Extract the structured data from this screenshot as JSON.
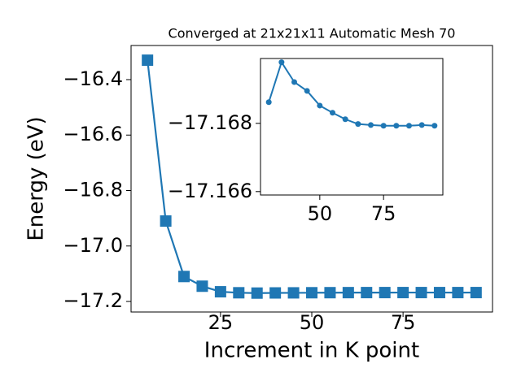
{
  "chart_data": [
    {
      "type": "line",
      "title": "Converged at 21x21x11 Automatic Mesh 70",
      "xlabel": "Increment in K point",
      "ylabel": "Energy (eV)",
      "marker": "square",
      "color": "#1f77b4",
      "x": [
        5,
        10,
        15,
        20,
        25,
        30,
        35,
        40,
        45,
        50,
        55,
        60,
        65,
        70,
        75,
        80,
        85,
        90,
        95
      ],
      "values": [
        -16.33,
        -16.91,
        -17.11,
        -17.145,
        -17.165,
        -17.16862,
        -17.16979,
        -17.16921,
        -17.16895,
        -17.16852,
        -17.16831,
        -17.16812,
        -17.16798,
        -17.16795,
        -17.16793,
        -17.16793,
        -17.16793,
        -17.16795,
        -17.16793
      ],
      "xlim": [
        0.5,
        99.5
      ],
      "ylim": [
        -17.238,
        -16.277
      ],
      "xticks": [
        25,
        50,
        75
      ],
      "yticks": [
        {
          "value": -16.4,
          "label": "−16.4"
        },
        {
          "value": -16.6,
          "label": "−16.6"
        },
        {
          "value": -16.8,
          "label": "−16.8"
        },
        {
          "value": -17.0,
          "label": "−17.0"
        },
        {
          "value": -17.2,
          "label": "−17.2"
        }
      ]
    },
    {
      "type": "line",
      "marker": "circle",
      "color": "#1f77b4",
      "x": [
        30,
        35,
        40,
        45,
        50,
        55,
        60,
        65,
        70,
        75,
        80,
        85,
        90,
        95
      ],
      "values": [
        -17.16862,
        -17.16979,
        -17.16921,
        -17.16895,
        -17.16852,
        -17.16831,
        -17.16812,
        -17.16798,
        -17.16795,
        -17.16793,
        -17.16793,
        -17.16793,
        -17.16795,
        -17.16793
      ],
      "xlim": [
        26.75,
        98.25
      ],
      "ylim": [
        -17.1659,
        -17.1699
      ],
      "xticks": [
        50,
        75
      ],
      "yticks": [
        {
          "value": -17.168,
          "label": "−17.168"
        },
        {
          "value": -17.166,
          "label": "−17.166"
        }
      ]
    }
  ]
}
